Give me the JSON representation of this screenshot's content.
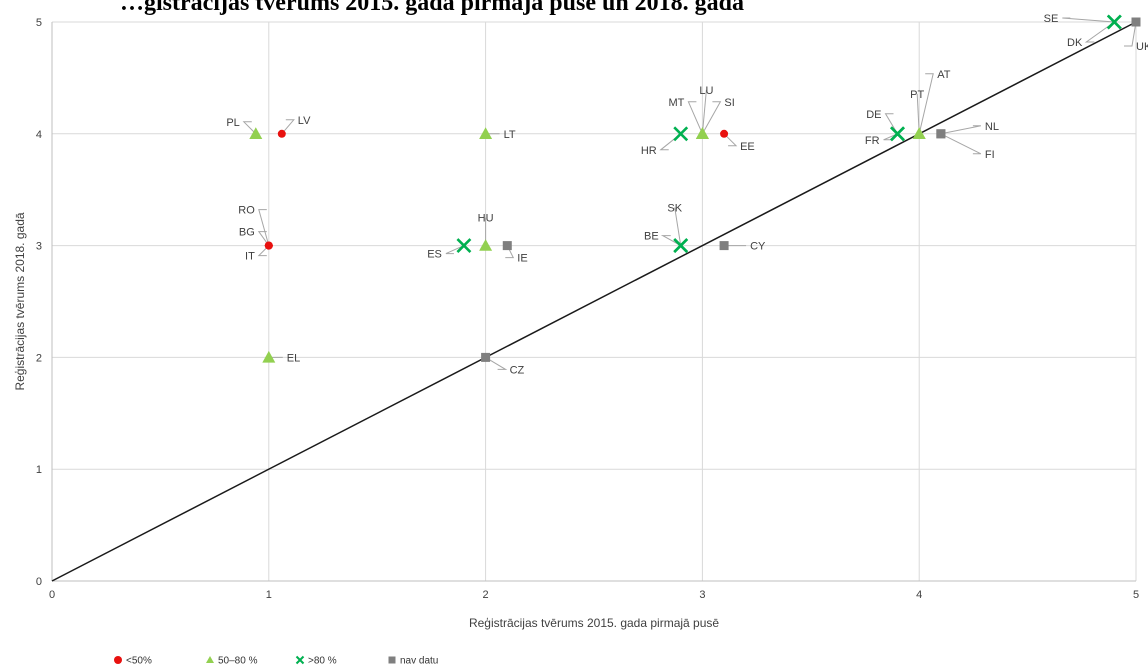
{
  "chart_data": {
    "type": "scatter",
    "title": "…ģistrācijas tvērums 2015. gada pirmajā pusē un 2018. gadā",
    "xlabel": "Reģistrācijas tvērums 2015. gada pirmajā pusē",
    "ylabel": "Reģistrācijas tvērums 2018. gadā",
    "xlim": [
      0,
      5
    ],
    "ylim": [
      0,
      5
    ],
    "x_ticks": [
      "0",
      "1",
      "2",
      "3",
      "4",
      "5"
    ],
    "y_ticks": [
      "0",
      "1",
      "2",
      "3",
      "4",
      "5"
    ],
    "grid": true,
    "diagonal_line": [
      [
        0,
        0
      ],
      [
        5,
        5
      ]
    ],
    "legend_position": "bottom-left",
    "series": [
      {
        "name": "<50%",
        "marker": "circle",
        "color": "#e8110f",
        "points": [
          {
            "label": "LV",
            "x": 1.06,
            "y": 4
          },
          {
            "label": "RO",
            "x": 1.0,
            "y": 3
          },
          {
            "label": "BG",
            "x": 1.0,
            "y": 3
          },
          {
            "label": "IT",
            "x": 1.0,
            "y": 3
          },
          {
            "label": "EE",
            "x": 3.1,
            "y": 4
          }
        ]
      },
      {
        "name": "50–80 %",
        "marker": "triangle",
        "color": "#92d050",
        "points": [
          {
            "label": "PL",
            "x": 0.94,
            "y": 4
          },
          {
            "label": "LT",
            "x": 2.0,
            "y": 4
          },
          {
            "label": "HU",
            "x": 2.0,
            "y": 3
          },
          {
            "label": "EL",
            "x": 1.0,
            "y": 2
          },
          {
            "label": "MT",
            "x": 3.0,
            "y": 4
          },
          {
            "label": "LU",
            "x": 3.0,
            "y": 4
          },
          {
            "label": "SI",
            "x": 3.0,
            "y": 4
          },
          {
            "label": "PT",
            "x": 4.0,
            "y": 4
          },
          {
            "label": "AT",
            "x": 4.0,
            "y": 4
          }
        ]
      },
      {
        "name": ">80 %",
        "marker": "x",
        "color": "#00b050",
        "points": [
          {
            "label": "ES",
            "x": 1.9,
            "y": 3
          },
          {
            "label": "HR",
            "x": 2.9,
            "y": 4
          },
          {
            "label": "BE",
            "x": 2.9,
            "y": 3
          },
          {
            "label": "SK",
            "x": 2.9,
            "y": 3
          },
          {
            "label": "DE",
            "x": 3.9,
            "y": 4
          },
          {
            "label": "FR",
            "x": 3.9,
            "y": 4
          },
          {
            "label": "SE",
            "x": 4.9,
            "y": 5
          },
          {
            "label": "DK",
            "x": 4.9,
            "y": 5
          }
        ]
      },
      {
        "name": "nav datu",
        "marker": "square",
        "color": "#7f7f7f",
        "points": [
          {
            "label": "IE",
            "x": 2.1,
            "y": 3
          },
          {
            "label": "CZ",
            "x": 2.0,
            "y": 2
          },
          {
            "label": "CY",
            "x": 3.1,
            "y": 3
          },
          {
            "label": "NL",
            "x": 4.1,
            "y": 4
          },
          {
            "label": "FI",
            "x": 4.1,
            "y": 4
          },
          {
            "label": "UK",
            "x": 5.0,
            "y": 5
          }
        ]
      }
    ]
  }
}
